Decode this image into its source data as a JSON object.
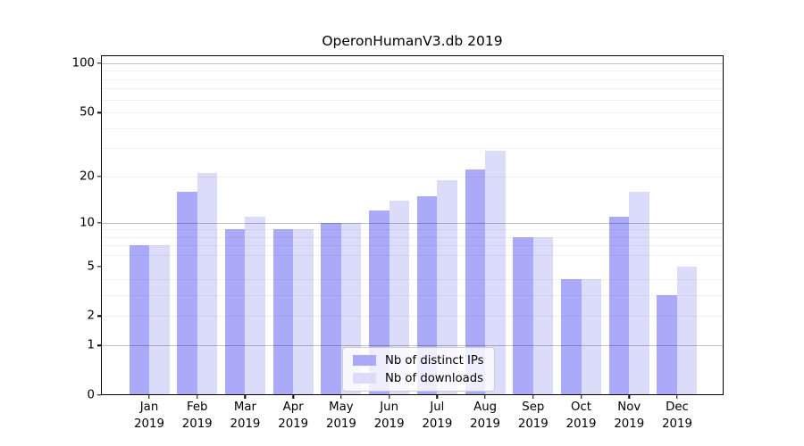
{
  "chart_data": {
    "type": "bar",
    "title": "OperonHumanV3.db 2019",
    "categories": [
      "Jan 2019",
      "Feb 2019",
      "Mar 2019",
      "Apr 2019",
      "May 2019",
      "Jun 2019",
      "Jul 2019",
      "Aug 2019",
      "Sep 2019",
      "Oct 2019",
      "Nov 2019",
      "Dec 2019"
    ],
    "series": [
      {
        "name": "Nb of distinct IPs",
        "slug": "ips",
        "color": "#aaaaf8",
        "values": [
          7,
          16,
          9,
          9,
          10,
          12,
          15,
          22,
          8,
          4,
          11,
          3
        ]
      },
      {
        "name": "Nb of downloads",
        "slug": "downloads",
        "color": "#dbdbfa",
        "values": [
          7,
          21,
          11,
          9,
          10,
          14,
          19,
          29,
          8,
          4,
          16,
          5
        ]
      }
    ],
    "xlabel": "",
    "ylabel": "",
    "yscale": "log1p",
    "ylim": [
      0,
      112
    ],
    "yticks": [
      0,
      1,
      2,
      5,
      10,
      20,
      50,
      100
    ],
    "major_gridlines": [
      1,
      10,
      100
    ],
    "minor_gridlines": [
      2,
      3,
      4,
      6,
      7,
      8,
      9,
      20,
      30,
      40,
      50,
      60,
      70,
      80,
      90
    ],
    "grid": true,
    "legend_position": "lower center"
  }
}
